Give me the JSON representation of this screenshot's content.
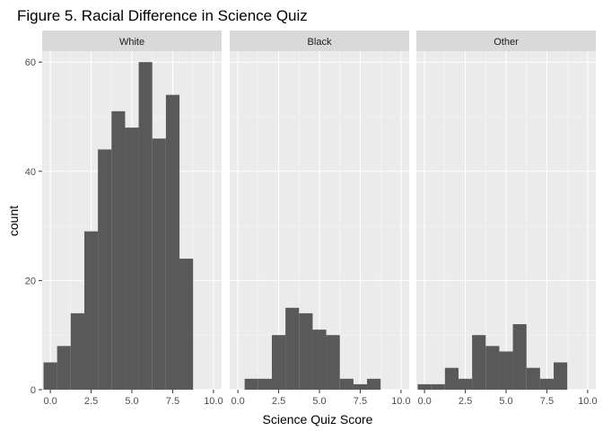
{
  "chart_data": {
    "type": "bar",
    "title": "Figure 5. Racial Difference in Science Quiz",
    "xlabel": "Science Quiz Score",
    "ylabel": "count",
    "xlim": [
      -0.5,
      10.5
    ],
    "ylim": [
      0,
      62
    ],
    "x_ticks": [
      0.0,
      2.5,
      5.0,
      7.5,
      10.0
    ],
    "x_tick_labels": [
      "0.0",
      "2.5",
      "5.0",
      "7.5",
      "10.0"
    ],
    "y_ticks": [
      0,
      20,
      40,
      60
    ],
    "y_tick_labels": [
      "0",
      "20",
      "40",
      "60"
    ],
    "bin_centers": [
      0,
      0.833,
      1.667,
      2.5,
      3.333,
      4.167,
      5,
      5.833,
      6.667,
      7.5,
      8.333,
      9.167,
      10
    ],
    "bin_width": 0.8333,
    "grid": true,
    "facets": [
      {
        "name": "White",
        "values": [
          5,
          8,
          14,
          29,
          44,
          51,
          48,
          60,
          46,
          54,
          24,
          0,
          0
        ]
      },
      {
        "name": "Black",
        "values": [
          0,
          2,
          2,
          10,
          15,
          14,
          11,
          10,
          2,
          1,
          2,
          0,
          0
        ]
      },
      {
        "name": "Other",
        "values": [
          1,
          1,
          4,
          2,
          10,
          8,
          7,
          12,
          4,
          2,
          5,
          0,
          0
        ]
      }
    ],
    "colors": {
      "bar": "#595959",
      "panel_bg": "#ebebeb",
      "strip_bg": "#d9d9d9",
      "grid_major": "#ffffff",
      "grid_minor": "#f5f5f5"
    }
  }
}
